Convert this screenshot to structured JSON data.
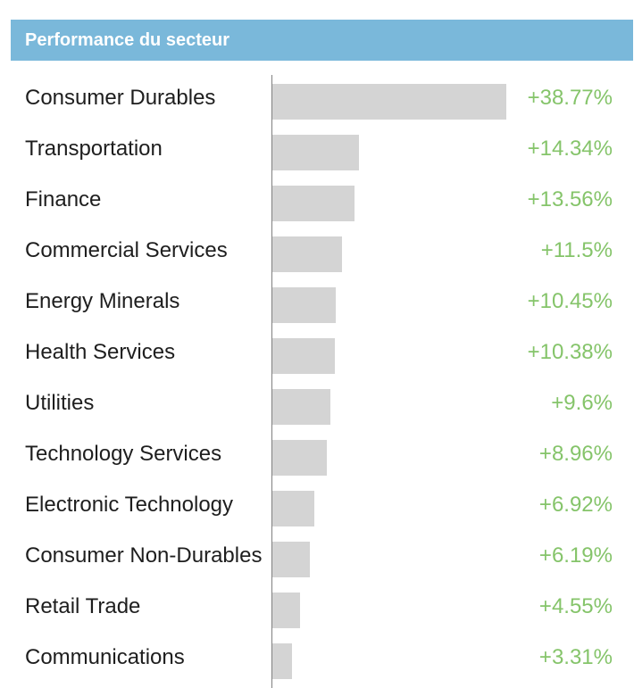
{
  "colors": {
    "header_bg": "#7ab8da",
    "header_text": "#ffffff",
    "bar": "#d4d4d4",
    "value_positive": "#85c46a",
    "label": "#1e1e1e",
    "axis": "#808080"
  },
  "chart_data": {
    "type": "bar",
    "horizontal": true,
    "title": "Performance du secteur",
    "categories": [
      "Consumer Durables",
      "Transportation",
      "Finance",
      "Commercial Services",
      "Energy Minerals",
      "Health Services",
      "Utilities",
      "Technology Services",
      "Electronic Technology",
      "Consumer Non-Durables",
      "Retail Trade",
      "Communications"
    ],
    "values": [
      38.77,
      14.34,
      13.56,
      11.5,
      10.45,
      10.38,
      9.6,
      8.96,
      6.92,
      6.19,
      4.55,
      3.31
    ],
    "value_labels": [
      "+38.77%",
      "+14.34%",
      "+13.56%",
      "+11.5%",
      "+10.45%",
      "+10.38%",
      "+9.6%",
      "+8.96%",
      "+6.92%",
      "+6.19%",
      "+4.55%",
      "+3.31%"
    ],
    "xlim": [
      0,
      38.77
    ],
    "grid": false
  }
}
